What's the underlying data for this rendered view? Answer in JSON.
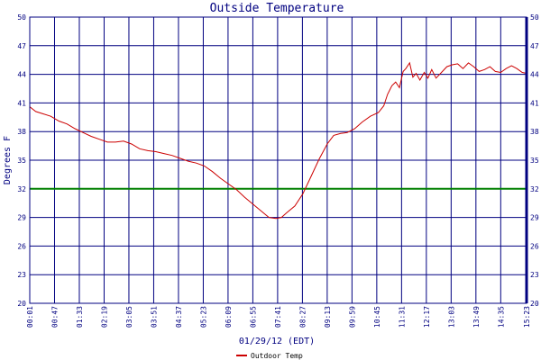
{
  "chart_data": {
    "type": "line",
    "title": "Outside Temperature",
    "xlabel": "01/29/12 (EDT)",
    "ylabel": "Degrees F",
    "ylim": [
      20,
      50
    ],
    "yticks": [
      20,
      23,
      26,
      29,
      32,
      35,
      38,
      41,
      44,
      47,
      50
    ],
    "xlim": [
      "00:01",
      "15:23"
    ],
    "xticks": [
      "00:01",
      "00:47",
      "01:33",
      "02:19",
      "03:05",
      "03:51",
      "04:37",
      "05:23",
      "06:09",
      "06:55",
      "07:41",
      "08:27",
      "09:13",
      "09:59",
      "10:45",
      "11:31",
      "12:17",
      "13:03",
      "13:49",
      "14:35",
      "15:23"
    ],
    "reference_line": {
      "value": 32,
      "color": "#008000"
    },
    "grid": true,
    "legend_position": "bottom",
    "colors": {
      "axis": "#000080",
      "grid": "#000080",
      "series": "#cc0000",
      "reference": "#008000"
    },
    "series": [
      {
        "name": "Outdoor Temp",
        "color": "#cc0000",
        "x": [
          "00:01",
          "00:12",
          "00:24",
          "00:40",
          "00:55",
          "01:10",
          "01:25",
          "01:40",
          "01:55",
          "02:10",
          "02:25",
          "02:40",
          "02:55",
          "03:10",
          "03:25",
          "03:40",
          "03:55",
          "04:10",
          "04:25",
          "04:40",
          "04:55",
          "05:10",
          "05:25",
          "05:40",
          "05:55",
          "06:10",
          "06:25",
          "06:40",
          "06:55",
          "07:10",
          "07:25",
          "07:38",
          "07:48",
          "07:58",
          "08:13",
          "08:28",
          "08:43",
          "08:58",
          "09:13",
          "09:25",
          "09:38",
          "09:50",
          "10:04",
          "10:18",
          "10:33",
          "10:48",
          "10:58",
          "11:05",
          "11:13",
          "11:20",
          "11:27",
          "11:34",
          "11:39",
          "11:46",
          "11:52",
          "11:58",
          "12:05",
          "12:13",
          "12:20",
          "12:27",
          "12:35",
          "12:45",
          "12:55",
          "13:05",
          "13:15",
          "13:25",
          "13:35",
          "13:45",
          "13:55",
          "14:05",
          "14:15",
          "14:25",
          "14:35",
          "14:45",
          "14:55",
          "15:05",
          "15:15",
          "15:23"
        ],
        "y": [
          40.6,
          40.1,
          39.9,
          39.6,
          39.1,
          38.8,
          38.3,
          37.9,
          37.5,
          37.2,
          36.9,
          36.9,
          37.0,
          36.7,
          36.2,
          36.0,
          35.9,
          35.7,
          35.5,
          35.2,
          34.9,
          34.7,
          34.4,
          33.8,
          33.1,
          32.5,
          31.9,
          31.1,
          30.4,
          29.7,
          29.0,
          28.9,
          29.0,
          29.5,
          30.2,
          31.5,
          33.3,
          35.1,
          36.7,
          37.6,
          37.8,
          37.9,
          38.3,
          39.0,
          39.6,
          40.0,
          40.7,
          41.9,
          42.8,
          43.2,
          42.6,
          44.3,
          44.6,
          45.2,
          43.7,
          44.1,
          43.4,
          44.2,
          43.6,
          44.5,
          43.6,
          44.2,
          44.8,
          45.0,
          45.1,
          44.6,
          45.2,
          44.8,
          44.3,
          44.5,
          44.8,
          44.3,
          44.2,
          44.6,
          44.9,
          44.6,
          44.2,
          44.1
        ]
      }
    ]
  }
}
